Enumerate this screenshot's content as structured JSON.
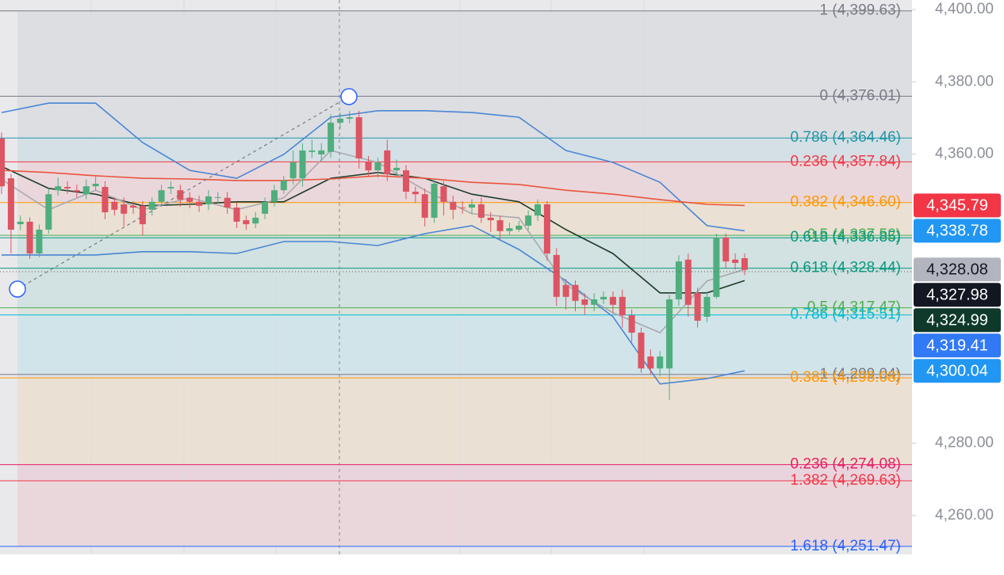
{
  "chart_data": {
    "type": "candlestick",
    "up_color": "#4fae7d",
    "down_color": "#dd5462",
    "open": [
      4364.3,
      4353.3,
      4340.6,
      4341.3,
      4332.5,
      4339.1,
      4350.0,
      4350.9,
      4350.0,
      4348.9,
      4351.1,
      4350.9,
      4346.8,
      4346.1,
      4345.7,
      4345.7,
      4344.6,
      4346.8,
      4350.5,
      4350.0,
      4347.9,
      4346.8,
      4346.1,
      4347.9,
      4347.9,
      4345.2,
      4341.7,
      4340.8,
      4343.5,
      4346.8,
      4350.0,
      4353.3,
      4353.3,
      4360.6,
      4359.9,
      4360.6,
      4368.7,
      4369.8,
      4370.2,
      4357.7,
      4355.5,
      4361.0,
      4355.5,
      4355.5,
      4349.6,
      4348.9,
      4342.4,
      4351.1,
      4346.8,
      4345.2,
      4345.2,
      4346.1,
      4342.4,
      4341.7,
      4338.7,
      4339.1,
      4340.2,
      4343.0,
      4346.1,
      4332.1,
      4323.8,
      4323.8,
      4319.8,
      4318.3,
      4319.8,
      4320.5,
      4320.5,
      4315.4,
      4310.6,
      4304.0,
      4300.7,
      4300.7,
      4319.8,
      4330.8,
      4321.6,
      4315.0,
      4320.5,
      4336.9,
      4330.8,
      4331.2
    ],
    "high": [
      4366.0,
      4354.5,
      4343.0,
      4342.5,
      4340.5,
      4350.5,
      4353.5,
      4352.5,
      4351.5,
      4353.0,
      4354.0,
      4352.5,
      4348.0,
      4348.0,
      4347.0,
      4347.0,
      4348.0,
      4351.5,
      4352.5,
      4351.5,
      4349.5,
      4348.5,
      4350.0,
      4349.5,
      4349.5,
      4346.5,
      4343.0,
      4344.0,
      4348.0,
      4351.5,
      4354.0,
      4361.0,
      4363.0,
      4364.0,
      4363.0,
      4371.0,
      4371.5,
      4372.0,
      4372.0,
      4359.5,
      4359.0,
      4364.0,
      4358.5,
      4357.0,
      4351.0,
      4350.5,
      4353.0,
      4352.5,
      4348.5,
      4347.0,
      4347.5,
      4348.0,
      4344.0,
      4343.0,
      4341.0,
      4341.5,
      4344.5,
      4347.5,
      4347.0,
      4334.0,
      4325.5,
      4325.0,
      4321.5,
      4321.5,
      4322.0,
      4322.0,
      4322.5,
      4317.0,
      4312.0,
      4306.0,
      4305.5,
      4321.0,
      4332.0,
      4332.5,
      4323.0,
      4322.0,
      4338.0,
      4338.0,
      4332.5,
      4332.5
    ],
    "low": [
      4349.0,
      4332.5,
      4339.0,
      4331.0,
      4331.5,
      4338.0,
      4348.5,
      4349.0,
      4348.0,
      4347.5,
      4350.0,
      4342.0,
      4343.0,
      4340.0,
      4343.5,
      4337.5,
      4343.0,
      4345.5,
      4349.0,
      4345.5,
      4345.0,
      4344.0,
      4344.5,
      4346.5,
      4343.5,
      4339.5,
      4339.0,
      4339.5,
      4342.0,
      4345.5,
      4349.0,
      4351.5,
      4351.0,
      4359.0,
      4358.0,
      4359.0,
      4367.0,
      4368.5,
      4356.0,
      4354.0,
      4353.5,
      4352.5,
      4354.0,
      4347.5,
      4346.5,
      4340.0,
      4341.0,
      4343.0,
      4342.0,
      4343.5,
      4343.5,
      4341.0,
      4338.5,
      4336.5,
      4337.5,
      4338.5,
      4339.0,
      4341.5,
      4330.5,
      4318.0,
      4317.0,
      4316.5,
      4315.5,
      4316.5,
      4318.5,
      4316.0,
      4312.0,
      4308.0,
      4299.5,
      4299.0,
      4298.5,
      4292.0,
      4318.0,
      4315.0,
      4312.0,
      4313.5,
      4320.0,
      4328.5,
      4328.0,
      4326.5
    ],
    "close": [
      4351.1,
      4339.1,
      4341.3,
      4332.5,
      4339.1,
      4348.9,
      4351.1,
      4350.5,
      4349.6,
      4351.1,
      4351.8,
      4343.9,
      4344.6,
      4343.5,
      4345.2,
      4340.6,
      4346.8,
      4350.0,
      4350.9,
      4347.4,
      4346.8,
      4345.7,
      4348.3,
      4348.1,
      4345.2,
      4341.3,
      4340.6,
      4342.4,
      4346.8,
      4350.0,
      4352.7,
      4357.7,
      4361.0,
      4361.0,
      4361.0,
      4368.7,
      4369.8,
      4370.2,
      4358.8,
      4355.5,
      4357.7,
      4354.4,
      4356.2,
      4349.6,
      4348.9,
      4342.4,
      4351.8,
      4346.8,
      4344.6,
      4345.0,
      4346.1,
      4342.4,
      4341.7,
      4338.7,
      4339.5,
      4340.2,
      4343.0,
      4346.1,
      4332.5,
      4320.5,
      4320.5,
      4319.4,
      4318.3,
      4319.8,
      4320.5,
      4318.3,
      4315.4,
      4310.6,
      4300.7,
      4300.7,
      4304.0,
      4319.8,
      4330.3,
      4318.3,
      4313.9,
      4320.5,
      4336.9,
      4330.3,
      4329.9,
      4327.98
    ],
    "overlays": [
      {
        "color": "#4a86d4",
        "x": [
          0,
          5,
          10,
          15,
          20,
          25,
          30,
          35,
          40,
          45,
          50,
          55,
          60,
          65,
          70,
          75,
          79
        ],
        "values": [
          4371.5,
          4374.1,
          4374.1,
          4363.2,
          4355.5,
          4353.3,
          4359.9,
          4370.2,
          4372.0,
          4372.0,
          4371.5,
          4370.2,
          4361.0,
          4357.7,
          4352.2,
          4340.2,
          4338.78
        ]
      },
      {
        "color": "#4a86d4",
        "x": [
          0,
          5,
          10,
          15,
          20,
          25,
          30,
          35,
          40,
          45,
          50,
          55,
          60,
          65,
          70,
          75,
          79
        ],
        "values": [
          4332.1,
          4332.1,
          4332.1,
          4333.0,
          4333.0,
          4332.5,
          4335.8,
          4335.8,
          4334.7,
          4338.0,
          4340.2,
          4333.6,
          4324.9,
          4315.0,
          4296.4,
          4297.9,
          4300.04
        ]
      },
      {
        "color": "#1e3d2c",
        "x": [
          0,
          5,
          10,
          15,
          20,
          25,
          30,
          35,
          40,
          45,
          50,
          55,
          60,
          65,
          70,
          75,
          79
        ],
        "values": [
          4356.6,
          4350.5,
          4348.9,
          4345.7,
          4346.1,
          4346.8,
          4346.8,
          4353.3,
          4354.9,
          4353.3,
          4348.9,
          4346.8,
          4339.1,
          4332.5,
          4321.6,
          4321.6,
          4324.99
        ]
      },
      {
        "color": "#e8553e",
        "x": [
          0,
          5,
          10,
          15,
          20,
          25,
          30,
          35,
          40,
          45,
          50,
          55,
          60,
          65,
          70,
          75,
          79
        ],
        "values": [
          4355.5,
          4354.9,
          4354.0,
          4353.3,
          4353.1,
          4352.7,
          4352.7,
          4353.1,
          4354.0,
          4353.3,
          4352.2,
          4351.6,
          4350.0,
          4348.9,
          4347.4,
          4346.1,
          4345.79
        ]
      },
      {
        "color": "#a9aaaf",
        "x": [
          0,
          5,
          10,
          15,
          20,
          25,
          30,
          35,
          40,
          45,
          50,
          55,
          60,
          65,
          70,
          75,
          79
        ],
        "values": [
          4353.0,
          4344.6,
          4350.0,
          4344.6,
          4347.9,
          4344.6,
          4347.9,
          4361.0,
          4357.7,
          4350.0,
          4343.5,
          4342.4,
          4323.8,
          4316.1,
          4310.6,
          4324.9,
          4328.08
        ]
      }
    ],
    "fib_levels": [
      {
        "label": "1 (4,399.63)",
        "value": 4399.63,
        "color": "#787b86"
      },
      {
        "label": "0 (4,376.01)",
        "value": 4376.01,
        "color": "#787b86"
      },
      {
        "label": "0.786 (4,364.46)",
        "value": 4364.46,
        "color": "#2196a8"
      },
      {
        "label": "0.236 (4,357.84)",
        "value": 4357.84,
        "color": "#f23645"
      },
      {
        "label": "0.382 (4,346.60)",
        "value": 4346.6,
        "color": "#ff9800"
      },
      {
        "label": "0.5 (4,337.52)",
        "value": 4337.52,
        "color": "#4caf50"
      },
      {
        "label": "0.618 (4,336.85)",
        "value": 4336.85,
        "color": "#089981"
      },
      {
        "label": "0.618 (4,328.44)",
        "value": 4328.44,
        "color": "#089981"
      },
      {
        "label": "0.5 (4,317.47)",
        "value": 4317.47,
        "color": "#4caf50"
      },
      {
        "label": "0.786 (4,315.51)",
        "value": 4315.51,
        "color": "#00bcd4"
      },
      {
        "label": "1 (4,299.04)",
        "value": 4299.04,
        "color": "#787b86"
      },
      {
        "label": "0.382 (4,298.08)",
        "value": 4298.08,
        "color": "#ff9800"
      },
      {
        "label": "0.236 (4,274.08)",
        "value": 4274.08,
        "color": "#e91e63"
      },
      {
        "label": "1.382 (4,269.63)",
        "value": 4269.63,
        "color": "#f23645"
      },
      {
        "label": "1.618 (4,251.47)",
        "value": 4251.47,
        "color": "#2962ff"
      }
    ],
    "price_tags": [
      {
        "value": 4345.79,
        "label": "4,345.79",
        "color": "#f23645",
        "text_color": "#ffffff"
      },
      {
        "value": 4338.78,
        "label": "4,338.78",
        "color": "#2196f3",
        "text_color": "#ffffff"
      },
      {
        "value": 4328.08,
        "label": "4,328.08",
        "color": "#b2b5be",
        "text_color": "#131722"
      },
      {
        "value": 4327.98,
        "label": "4,327.98",
        "color": "#131722",
        "text_color": "#ffffff"
      },
      {
        "value": 4324.99,
        "label": "4,324.99",
        "color": "#0f3a2b",
        "text_color": "#ffffff"
      },
      {
        "value": 4319.41,
        "label": "4,319.41",
        "color": "#3179f5",
        "text_color": "#ffffff"
      },
      {
        "value": 4300.04,
        "label": "4,300.04",
        "color": "#2196f3",
        "text_color": "#ffffff"
      }
    ],
    "ylim": [
      4249.25,
      4402.63
    ],
    "yticks": [
      {
        "value": 4400,
        "label": "4,400.00"
      },
      {
        "value": 4380,
        "label": "4,380.00"
      },
      {
        "value": 4360,
        "label": "4,360.00"
      },
      {
        "value": 4280,
        "label": "4,280.00"
      },
      {
        "value": 4260,
        "label": "4,260.00"
      }
    ]
  }
}
